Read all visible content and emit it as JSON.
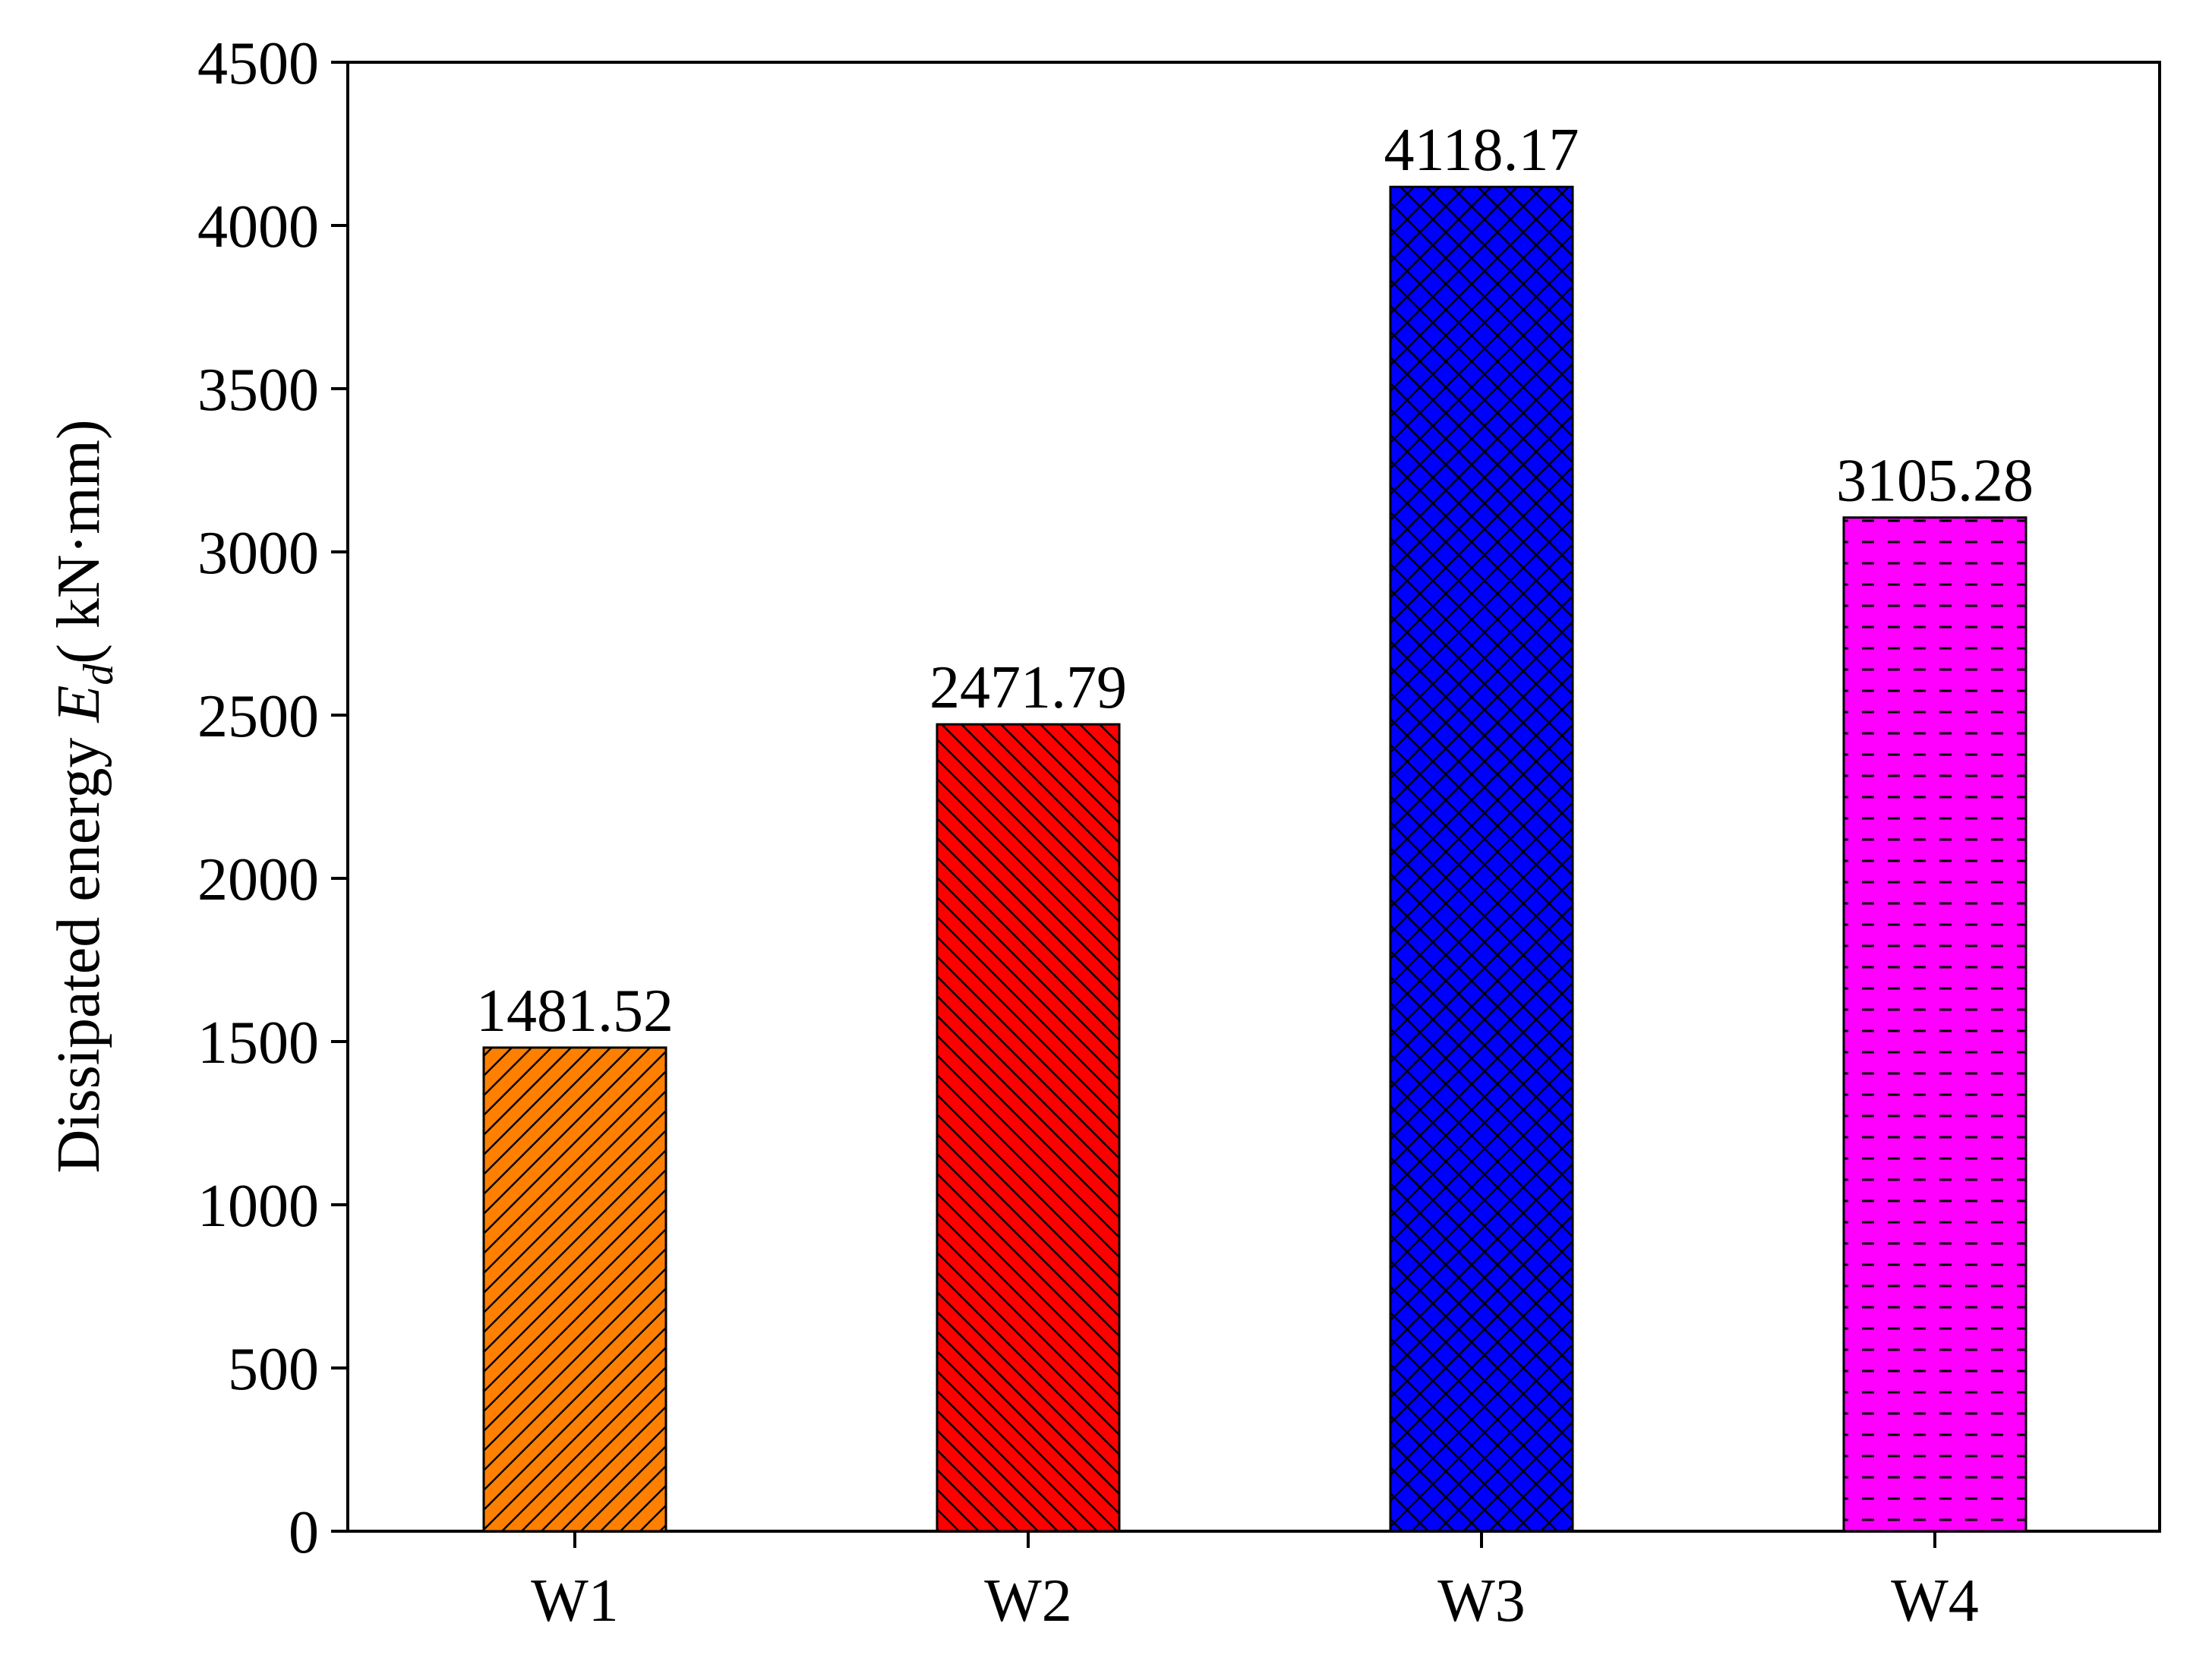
{
  "chart_data": {
    "type": "bar",
    "title": "",
    "xlabel": "",
    "ylabel": {
      "prefix": "Dissipated energy ",
      "symbol": "E",
      "subscript": "d",
      "unit": "( kN·mm)"
    },
    "ylim": [
      0,
      4500
    ],
    "yticks": [
      0,
      500,
      1000,
      1500,
      2000,
      2500,
      3000,
      3500,
      4000,
      4500
    ],
    "grid": false,
    "categories": [
      "W1",
      "W2",
      "W3",
      "W4"
    ],
    "values": [
      1481.52,
      2471.79,
      4118.17,
      3105.28
    ],
    "value_labels": [
      "1481.52",
      "2471.79",
      "4118.17",
      "3105.28"
    ],
    "colors": [
      "#ff8000",
      "#ff0000",
      "#0000ff",
      "#ff00ff"
    ],
    "patterns": [
      "diag-up",
      "diag-down",
      "crosshatch",
      "dashes"
    ]
  }
}
